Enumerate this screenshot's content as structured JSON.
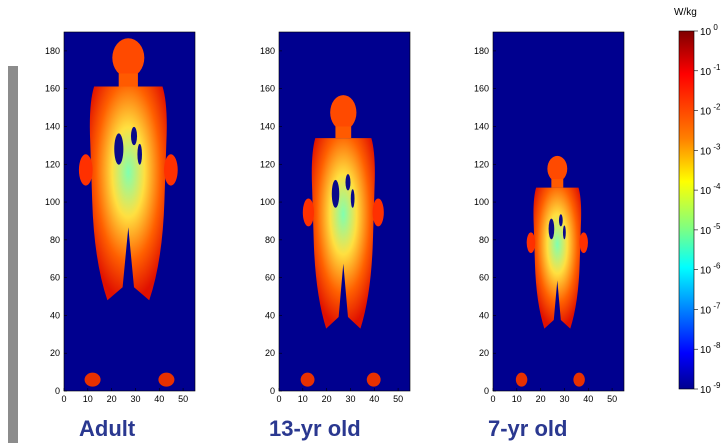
{
  "panels": [
    {
      "label": "Adult",
      "height": 188,
      "body_top": 186,
      "leg_bottom": 48,
      "scale": 1.0
    },
    {
      "label": "13-yr old",
      "height": 188,
      "body_top": 156,
      "leg_bottom": 33,
      "scale": 0.82
    },
    {
      "label": "7-yr old",
      "height": 188,
      "body_top": 124,
      "leg_bottom": 33,
      "scale": 0.62
    }
  ],
  "axes": {
    "x_ticks": [
      0,
      10,
      20,
      30,
      40,
      50
    ],
    "y_ticks": [
      0,
      20,
      40,
      60,
      80,
      100,
      120,
      140,
      160,
      180
    ],
    "xlim": [
      0,
      55
    ],
    "ylim": [
      0,
      190
    ]
  },
  "colorbar": {
    "unit": "W/kg",
    "exponents": [
      "0",
      "-1",
      "-2",
      "-3",
      "-4",
      "-5",
      "-6",
      "-7",
      "-8",
      "-9"
    ],
    "base": "10",
    "scale": "log"
  },
  "colors": {
    "background": "#00008f",
    "label": "#2a3890",
    "bar": "#8c8c8c"
  }
}
